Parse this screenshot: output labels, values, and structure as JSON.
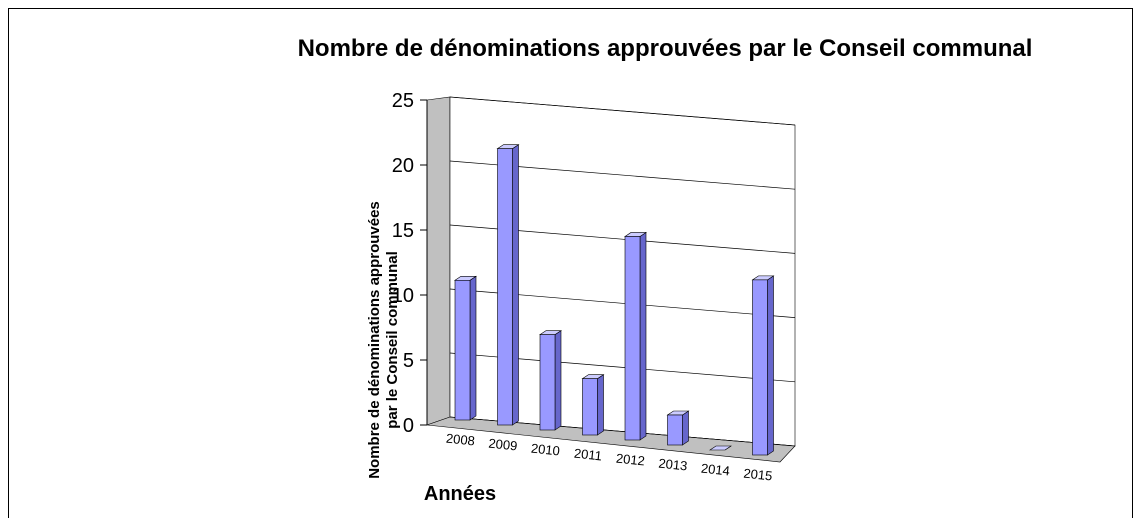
{
  "chart_data": {
    "type": "bar3d",
    "title": "Nombre de dénominations approuvées par le Conseil communal",
    "x_label": "Années",
    "y_label": "Nombre de dénominations approuvées par le Conseil communal",
    "categories": [
      "2008",
      "2009",
      "2010",
      "2011",
      "2012",
      "2013",
      "2014",
      "2015"
    ],
    "values": [
      11,
      21,
      7,
      4,
      14,
      2,
      0,
      11
    ],
    "color": "#9999ff",
    "ylim": [
      0,
      25
    ],
    "yticks": [
      0,
      5,
      10,
      15,
      20,
      25
    ],
    "grid": true
  }
}
